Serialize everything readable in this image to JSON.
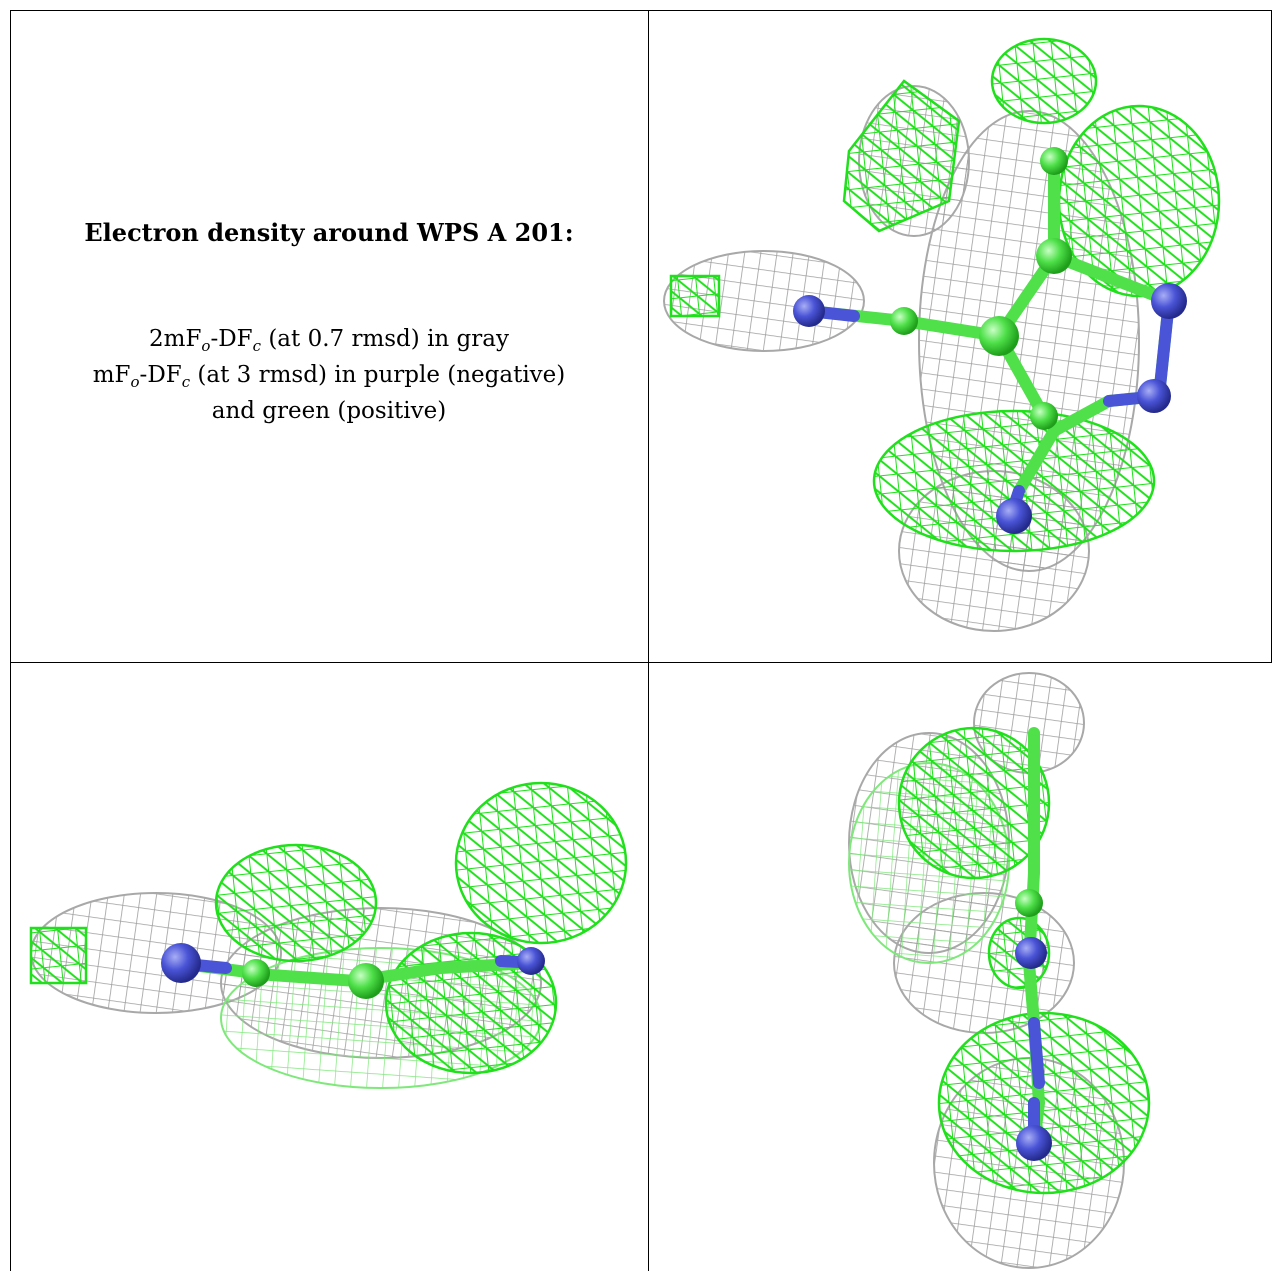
{
  "caption": {
    "title": "Electron density around WPS A 201:",
    "line1": {
      "pre": "2mF",
      "sub1": "o",
      "mid": "-DF",
      "sub2": "c",
      "post": " (at 0.7 rmsd) in gray"
    },
    "line2": {
      "pre": "mF",
      "sub1": "o",
      "mid": "-DF",
      "sub2": "c",
      "post": " (at 3 rmsd) in purple (negative)"
    },
    "line3": "and green (positive)"
  },
  "colors": {
    "gray_mesh": "#b0b0b0",
    "green_mesh": "#22e01e",
    "green_atom": "#5fe85a",
    "purple_atom": "#4a54d6",
    "border": "#000000"
  },
  "panels": [
    {
      "id": "top-right",
      "view": "density-view-1"
    },
    {
      "id": "bottom-left",
      "view": "density-view-2"
    },
    {
      "id": "bottom-right",
      "view": "density-view-3"
    }
  ]
}
